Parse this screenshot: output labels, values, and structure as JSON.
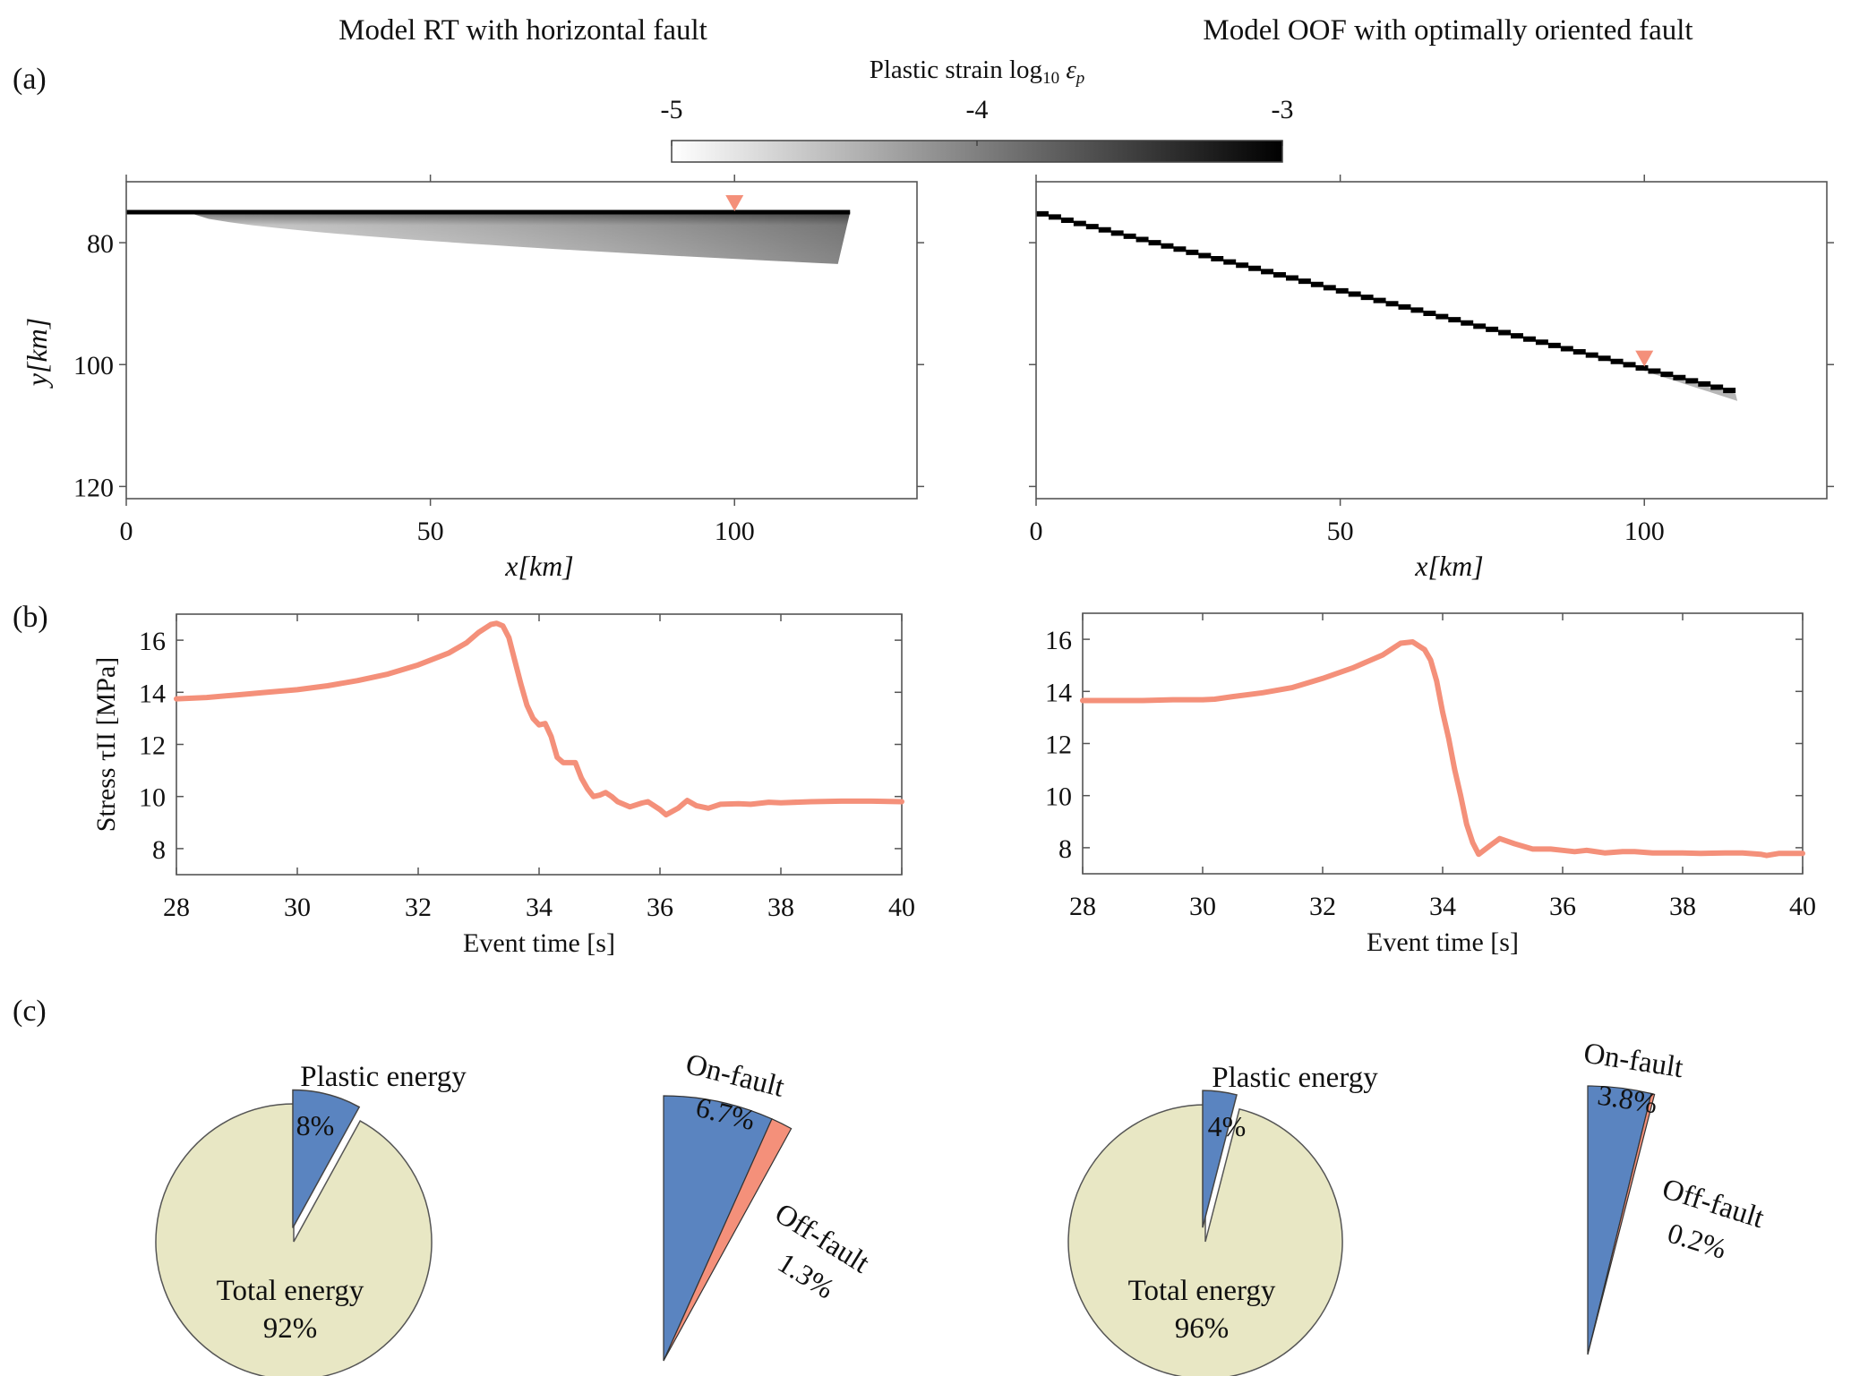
{
  "figure": {
    "panel_labels": [
      "(a)",
      "(b)",
      "(c)"
    ],
    "column_titles": [
      "Model RT with horizontal fault",
      "Model OOF with optimally oriented fault"
    ]
  },
  "colors": {
    "marker": "#F4907A",
    "stress_line": "#F4907A",
    "total_energy": "#E8E7C4",
    "on_fault": "#5A84C0",
    "off_fault": "#F4907A",
    "axis": "#555555"
  },
  "chart_data": [
    {
      "id": "colorbar",
      "type": "heatmap",
      "title": "Plastic strain log10 εp",
      "title_text": "Plastic strain log",
      "title_sub": "10",
      "title_var": "ε",
      "title_var_sub": "p",
      "range": [
        -5,
        -3
      ],
      "ticks": [
        -5,
        -4,
        -3
      ],
      "tick_labels": [
        "-5",
        "-4",
        "-3"
      ],
      "colormap": "white-to-black"
    },
    {
      "id": "strain-rt",
      "type": "heatmap",
      "title": "Model RT with horizontal fault",
      "xlabel": "x[km]",
      "ylabel": "y[km]",
      "xlim": [
        0,
        130
      ],
      "ylim": [
        70,
        122
      ],
      "y_reversed": true,
      "xticks": [
        0,
        50,
        100
      ],
      "yticks": [
        80,
        100,
        120
      ],
      "fault": {
        "x0": 0,
        "y0": 75,
        "x1": 119,
        "y1": 75
      },
      "damage_zone": {
        "x_start": 10,
        "x_end": 119,
        "y_top": 75,
        "max_depth_y": 83.5,
        "strain_log10_range": [
          -5,
          -3.5
        ]
      },
      "marker": {
        "x": 100,
        "y": 75
      }
    },
    {
      "id": "strain-oof",
      "type": "heatmap",
      "title": "Model OOF with optimally oriented fault",
      "xlabel": "x[km]",
      "ylabel": "",
      "xlim": [
        0,
        130
      ],
      "ylim": [
        70,
        122
      ],
      "y_reversed": true,
      "xticks": [
        0,
        50,
        100
      ],
      "yticks": [
        80,
        100,
        120
      ],
      "fault": {
        "x0": 0,
        "y0": 75,
        "x1": 115,
        "y1": 104.5
      },
      "damage_zone": {
        "x_start": 90,
        "x_end": 115,
        "strain_log10_range": [
          -5,
          -4
        ]
      },
      "marker": {
        "x": 100,
        "y": 100.5
      }
    },
    {
      "id": "stress-rt",
      "type": "line",
      "xlabel": "Event time [s]",
      "ylabel": "Stress τII [MPa]",
      "xlim": [
        28,
        40
      ],
      "ylim": [
        7,
        17
      ],
      "xticks": [
        28,
        30,
        32,
        34,
        36,
        38,
        40
      ],
      "yticks": [
        8,
        10,
        12,
        14,
        16
      ],
      "series": [
        {
          "name": "Model RT",
          "x": [
            28,
            28.5,
            29,
            29.5,
            30,
            30.5,
            31,
            31.5,
            32,
            32.5,
            32.8,
            33.0,
            33.2,
            33.3,
            33.4,
            33.5,
            33.6,
            33.7,
            33.8,
            33.9,
            34.0,
            34.1,
            34.2,
            34.3,
            34.4,
            34.5,
            34.6,
            34.7,
            34.8,
            34.9,
            35.0,
            35.1,
            35.2,
            35.3,
            35.5,
            35.7,
            35.8,
            36.0,
            36.1,
            36.3,
            36.45,
            36.6,
            36.8,
            37.0,
            37.3,
            37.5,
            37.8,
            38.0,
            38.5,
            39.0,
            39.5,
            40.0
          ],
          "y": [
            13.75,
            13.8,
            13.9,
            14.0,
            14.1,
            14.25,
            14.45,
            14.7,
            15.05,
            15.5,
            15.9,
            16.3,
            16.6,
            16.65,
            16.55,
            16.1,
            15.2,
            14.3,
            13.5,
            13.0,
            12.75,
            12.8,
            12.3,
            11.5,
            11.3,
            11.3,
            11.3,
            10.7,
            10.3,
            10.0,
            10.05,
            10.15,
            10.0,
            9.8,
            9.6,
            9.75,
            9.8,
            9.5,
            9.3,
            9.55,
            9.85,
            9.65,
            9.55,
            9.7,
            9.72,
            9.7,
            9.78,
            9.76,
            9.8,
            9.82,
            9.82,
            9.8
          ]
        }
      ]
    },
    {
      "id": "stress-oof",
      "type": "line",
      "xlabel": "Event time [s]",
      "ylabel": "",
      "xlim": [
        28,
        40
      ],
      "ylim": [
        7,
        17
      ],
      "xticks": [
        28,
        30,
        32,
        34,
        36,
        38,
        40
      ],
      "yticks": [
        8,
        10,
        12,
        14,
        16
      ],
      "series": [
        {
          "name": "Model OOF",
          "x": [
            28,
            28.5,
            29,
            29.5,
            30,
            30.2,
            30.5,
            31,
            31.5,
            32,
            32.5,
            33,
            33.3,
            33.5,
            33.7,
            33.8,
            33.9,
            34.0,
            34.1,
            34.2,
            34.3,
            34.4,
            34.5,
            34.6,
            34.8,
            34.95,
            35.2,
            35.5,
            35.8,
            36.0,
            36.2,
            36.4,
            36.7,
            37.0,
            37.2,
            37.5,
            38.0,
            38.3,
            38.7,
            39.0,
            39.3,
            39.4,
            39.6,
            40.0
          ],
          "y": [
            13.65,
            13.65,
            13.65,
            13.68,
            13.68,
            13.7,
            13.8,
            13.95,
            14.15,
            14.5,
            14.9,
            15.4,
            15.85,
            15.9,
            15.6,
            15.2,
            14.4,
            13.2,
            12.2,
            11.0,
            10.0,
            8.9,
            8.2,
            7.75,
            8.1,
            8.35,
            8.15,
            7.95,
            7.95,
            7.9,
            7.85,
            7.9,
            7.8,
            7.85,
            7.85,
            7.8,
            7.8,
            7.78,
            7.8,
            7.8,
            7.75,
            7.7,
            7.78,
            7.78
          ]
        }
      ]
    },
    {
      "id": "energy-rt",
      "type": "pie",
      "slices": [
        {
          "name": "Plastic energy",
          "label": "Plastic energy",
          "value_label": "8%",
          "value": 8,
          "exploded": true
        },
        {
          "name": "Total energy",
          "label": "Total energy",
          "value_label": "92%",
          "value": 92,
          "exploded": false
        }
      ],
      "breakdown": [
        {
          "name": "On-fault",
          "label": "On-fault",
          "value_label": "6.7%",
          "value": 6.7
        },
        {
          "name": "Off-fault",
          "label": "Off-fault",
          "value_label": "1.3%",
          "value": 1.3
        }
      ]
    },
    {
      "id": "energy-oof",
      "type": "pie",
      "slices": [
        {
          "name": "Plastic energy",
          "label": "Plastic energy",
          "value_label": "4%",
          "value": 4,
          "exploded": true
        },
        {
          "name": "Total energy",
          "label": "Total energy",
          "value_label": "96%",
          "value": 96,
          "exploded": false
        }
      ],
      "breakdown": [
        {
          "name": "On-fault",
          "label": "On-fault",
          "value_label": "3.8%",
          "value": 3.8
        },
        {
          "name": "Off-fault",
          "label": "Off-fault",
          "value_label": "0.2%",
          "value": 0.2
        }
      ]
    }
  ]
}
